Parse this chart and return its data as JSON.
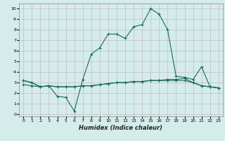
{
  "xlabel": "Humidex (Indice chaleur)",
  "bg_color": "#d4ecea",
  "grid_color": "#c0b0c0",
  "line_color": "#1a6b5a",
  "xlim": [
    -0.5,
    23.5
  ],
  "ylim": [
    -0.2,
    10.5
  ],
  "xticks": [
    0,
    1,
    2,
    3,
    4,
    5,
    6,
    7,
    8,
    9,
    10,
    11,
    12,
    13,
    14,
    15,
    16,
    17,
    18,
    19,
    20,
    21,
    22,
    23
  ],
  "yticks": [
    0,
    1,
    2,
    3,
    4,
    5,
    6,
    7,
    8,
    9,
    10
  ],
  "line1_x": [
    0,
    1,
    2,
    3,
    4,
    5,
    6,
    7,
    8,
    9,
    10,
    11,
    12,
    13,
    14,
    15,
    16,
    17,
    18,
    19,
    20,
    21,
    22,
    23
  ],
  "line1_y": [
    3.2,
    3.0,
    2.6,
    2.7,
    1.7,
    1.6,
    0.3,
    3.3,
    5.7,
    6.3,
    7.6,
    7.6,
    7.2,
    8.3,
    8.5,
    10.0,
    9.5,
    8.0,
    3.6,
    3.5,
    3.3,
    4.5,
    2.6,
    2.5
  ],
  "line2_x": [
    0,
    1,
    2,
    3,
    4,
    5,
    6,
    7,
    8,
    9,
    10,
    11,
    12,
    13,
    14,
    15,
    16,
    17,
    18,
    19,
    20,
    21,
    22,
    23
  ],
  "line2_y": [
    2.8,
    2.7,
    2.6,
    2.7,
    2.6,
    2.6,
    2.6,
    2.7,
    2.7,
    2.8,
    2.9,
    3.0,
    3.0,
    3.1,
    3.1,
    3.2,
    3.2,
    3.2,
    3.2,
    3.2,
    3.0,
    2.7,
    2.6,
    2.5
  ],
  "line3_x": [
    0,
    1,
    2,
    3,
    4,
    5,
    6,
    7,
    8,
    9,
    10,
    11,
    12,
    13,
    14,
    15,
    16,
    17,
    18,
    19,
    20,
    21,
    22,
    23
  ],
  "line3_y": [
    3.2,
    3.0,
    2.6,
    2.7,
    2.6,
    2.6,
    2.6,
    2.7,
    2.7,
    2.8,
    2.9,
    3.0,
    3.0,
    3.1,
    3.1,
    3.2,
    3.2,
    3.3,
    3.3,
    3.4,
    3.0,
    2.7,
    2.6,
    2.5
  ]
}
